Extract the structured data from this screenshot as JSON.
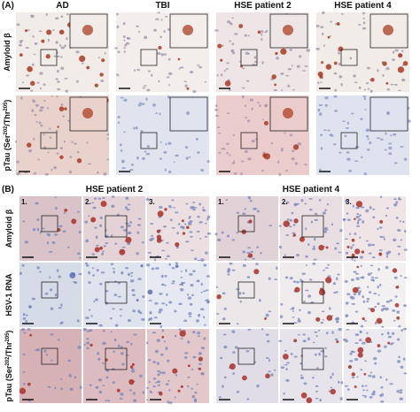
{
  "panel_a": {
    "label": "(A)",
    "columns": [
      "AD",
      "TBI",
      "HSE patient 2",
      "HSE patient 4"
    ],
    "rows": [
      {
        "parts": [
          {
            "text": "Amyloid β"
          }
        ]
      },
      {
        "parts": [
          {
            "text": "pTau (Ser"
          },
          {
            "superscript": "202"
          },
          {
            "text": "/Thr"
          },
          {
            "superscript": "205"
          },
          {
            "text": ")"
          }
        ]
      }
    ]
  },
  "panel_b": {
    "label": "(B)",
    "groups": [
      {
        "title": "HSE patient 2",
        "columns": [
          "1.",
          "2.",
          "3."
        ]
      },
      {
        "title": "HSE patient 4",
        "columns": [
          "1.",
          "2.",
          "3."
        ]
      }
    ],
    "rows": [
      {
        "parts": [
          {
            "text": "Amyloid β"
          }
        ]
      },
      {
        "parts": [
          {
            "text": "HSV-1 RNA"
          }
        ]
      },
      {
        "parts": [
          {
            "text": "pTau (Ser"
          },
          {
            "superscript": "202"
          },
          {
            "text": "/Thr"
          },
          {
            "superscript": "205"
          },
          {
            "text": ")"
          }
        ]
      }
    ]
  }
}
